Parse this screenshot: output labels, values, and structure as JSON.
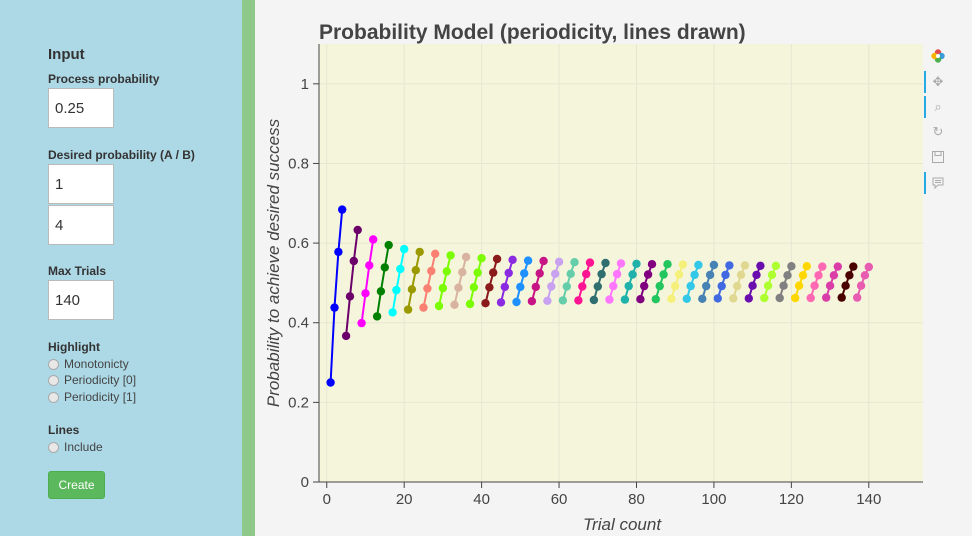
{
  "sidebar": {
    "title": "Input",
    "process_probability": {
      "label": "Process probability",
      "value": "0.25"
    },
    "desired_probability": {
      "label": "Desired probability (A / B)",
      "a": "1",
      "b": "4"
    },
    "max_trials": {
      "label": "Max Trials",
      "value": "140"
    },
    "highlight": {
      "label": "Highlight",
      "options": [
        "Monotonicty",
        "Periodicity [0]",
        "Periodicity [1]"
      ]
    },
    "lines": {
      "label": "Lines",
      "options": [
        "Include"
      ]
    },
    "create_label": "Create"
  },
  "toolbar": {
    "icons": [
      "bokeh-logo-icon",
      "pan-icon",
      "box-zoom-icon",
      "reset-icon",
      "save-icon",
      "hover-icon"
    ]
  },
  "chart_data": {
    "type": "line",
    "title": "Probability Model (periodicity, lines drawn)",
    "xlabel": "Trial count",
    "ylabel": "Probability to achieve desired success",
    "xlim": [
      -2,
      154
    ],
    "ylim": [
      0,
      1.1
    ],
    "xticks": [
      0,
      20,
      40,
      60,
      80,
      100,
      120,
      140
    ],
    "yticks": [
      0,
      0.2,
      0.4,
      0.6,
      0.8,
      1
    ],
    "xtick_labels": [
      "0",
      "20",
      "40",
      "60",
      "80",
      "100",
      "120",
      "140"
    ],
    "ytick_labels": [
      "0",
      "0.2",
      "0.4",
      "0.6",
      "0.8",
      "1"
    ],
    "background": "#f5f5dc",
    "grid": true,
    "legend": "none",
    "series": [
      {
        "color": "#0000ff",
        "points": [
          [
            1,
            0.25
          ],
          [
            2,
            0.438
          ],
          [
            3,
            0.578
          ],
          [
            4,
            0.684
          ]
        ]
      },
      {
        "color": "#6b006b",
        "points": [
          [
            5,
            0.367
          ],
          [
            6,
            0.466
          ],
          [
            7,
            0.555
          ],
          [
            8,
            0.633
          ]
        ]
      },
      {
        "color": "#ff00ff",
        "points": [
          [
            9,
            0.399
          ],
          [
            10,
            0.474
          ],
          [
            11,
            0.544
          ],
          [
            12,
            0.609
          ]
        ]
      },
      {
        "color": "#008000",
        "points": [
          [
            13,
            0.416
          ],
          [
            14,
            0.479
          ],
          [
            15,
            0.539
          ],
          [
            16,
            0.595
          ]
        ]
      },
      {
        "color": "#00ffff",
        "points": [
          [
            17,
            0.426
          ],
          [
            18,
            0.482
          ],
          [
            19,
            0.535
          ],
          [
            20,
            0.585
          ]
        ]
      },
      {
        "color": "#9a9a00",
        "points": [
          [
            21,
            0.433
          ],
          [
            22,
            0.484
          ],
          [
            23,
            0.532
          ],
          [
            24,
            0.578
          ]
        ]
      },
      {
        "color": "#fa8072",
        "points": [
          [
            25,
            0.438
          ],
          [
            26,
            0.486
          ],
          [
            27,
            0.53
          ],
          [
            28,
            0.573
          ]
        ]
      },
      {
        "color": "#7cfc00",
        "points": [
          [
            29,
            0.442
          ],
          [
            30,
            0.487
          ],
          [
            31,
            0.529
          ],
          [
            32,
            0.569
          ]
        ]
      },
      {
        "color": "#d8b4a0",
        "points": [
          [
            33,
            0.445
          ],
          [
            34,
            0.488
          ],
          [
            35,
            0.527
          ],
          [
            36,
            0.565
          ]
        ]
      },
      {
        "color": "#7cfc00",
        "points": [
          [
            37,
            0.447
          ],
          [
            38,
            0.489
          ],
          [
            39,
            0.526
          ],
          [
            40,
            0.562
          ]
        ]
      },
      {
        "color": "#8b1a1a",
        "points": [
          [
            41,
            0.449
          ],
          [
            42,
            0.489
          ],
          [
            43,
            0.526
          ],
          [
            44,
            0.56
          ]
        ]
      },
      {
        "color": "#8a2be2",
        "points": [
          [
            45,
            0.451
          ],
          [
            46,
            0.49
          ],
          [
            47,
            0.525
          ],
          [
            48,
            0.558
          ]
        ]
      },
      {
        "color": "#1e90ff",
        "points": [
          [
            49,
            0.452
          ],
          [
            50,
            0.49
          ],
          [
            51,
            0.524
          ],
          [
            52,
            0.556
          ]
        ]
      },
      {
        "color": "#c71585",
        "points": [
          [
            53,
            0.454
          ],
          [
            54,
            0.49
          ],
          [
            55,
            0.524
          ],
          [
            56,
            0.555
          ]
        ]
      },
      {
        "color": "#c8a2f0",
        "points": [
          [
            57,
            0.455
          ],
          [
            58,
            0.491
          ],
          [
            59,
            0.523
          ],
          [
            60,
            0.553
          ]
        ]
      },
      {
        "color": "#66cdaa",
        "points": [
          [
            61,
            0.456
          ],
          [
            62,
            0.491
          ],
          [
            63,
            0.523
          ],
          [
            64,
            0.552
          ]
        ]
      },
      {
        "color": "#ff1493",
        "points": [
          [
            65,
            0.456
          ],
          [
            66,
            0.491
          ],
          [
            67,
            0.522
          ],
          [
            68,
            0.551
          ]
        ]
      },
      {
        "color": "#2f6f6f",
        "points": [
          [
            69,
            0.457
          ],
          [
            70,
            0.491
          ],
          [
            71,
            0.522
          ],
          [
            72,
            0.55
          ]
        ]
      },
      {
        "color": "#ff77ff",
        "points": [
          [
            73,
            0.458
          ],
          [
            74,
            0.492
          ],
          [
            75,
            0.522
          ],
          [
            76,
            0.549
          ]
        ]
      },
      {
        "color": "#20b2aa",
        "points": [
          [
            77,
            0.458
          ],
          [
            78,
            0.492
          ],
          [
            79,
            0.521
          ],
          [
            80,
            0.548
          ]
        ]
      },
      {
        "color": "#800080",
        "points": [
          [
            81,
            0.459
          ],
          [
            82,
            0.492
          ],
          [
            83,
            0.521
          ],
          [
            84,
            0.547
          ]
        ]
      },
      {
        "color": "#22c55e",
        "points": [
          [
            85,
            0.459
          ],
          [
            86,
            0.492
          ],
          [
            87,
            0.521
          ],
          [
            88,
            0.547
          ]
        ]
      },
      {
        "color": "#f5f07a",
        "points": [
          [
            89,
            0.46
          ],
          [
            90,
            0.492
          ],
          [
            91,
            0.521
          ],
          [
            92,
            0.546
          ]
        ]
      },
      {
        "color": "#33c8e8",
        "points": [
          [
            93,
            0.46
          ],
          [
            94,
            0.492
          ],
          [
            95,
            0.52
          ],
          [
            96,
            0.545
          ]
        ]
      },
      {
        "color": "#4682b4",
        "points": [
          [
            97,
            0.46
          ],
          [
            98,
            0.492
          ],
          [
            99,
            0.52
          ],
          [
            100,
            0.545
          ]
        ]
      },
      {
        "color": "#4169e1",
        "points": [
          [
            101,
            0.461
          ],
          [
            102,
            0.492
          ],
          [
            103,
            0.52
          ],
          [
            104,
            0.544
          ]
        ]
      },
      {
        "color": "#e0d890",
        "points": [
          [
            105,
            0.461
          ],
          [
            106,
            0.492
          ],
          [
            107,
            0.52
          ],
          [
            108,
            0.544
          ]
        ]
      },
      {
        "color": "#6a0dad",
        "points": [
          [
            109,
            0.461
          ],
          [
            110,
            0.493
          ],
          [
            111,
            0.52
          ],
          [
            112,
            0.543
          ]
        ]
      },
      {
        "color": "#adff2f",
        "points": [
          [
            113,
            0.462
          ],
          [
            114,
            0.493
          ],
          [
            115,
            0.52
          ],
          [
            116,
            0.543
          ]
        ]
      },
      {
        "color": "#808080",
        "points": [
          [
            117,
            0.462
          ],
          [
            118,
            0.493
          ],
          [
            119,
            0.519
          ],
          [
            120,
            0.542
          ]
        ]
      },
      {
        "color": "#ffd700",
        "points": [
          [
            121,
            0.462
          ],
          [
            122,
            0.493
          ],
          [
            123,
            0.519
          ],
          [
            124,
            0.542
          ]
        ]
      },
      {
        "color": "#ff69b4",
        "points": [
          [
            125,
            0.462
          ],
          [
            126,
            0.493
          ],
          [
            127,
            0.519
          ],
          [
            128,
            0.541
          ]
        ]
      },
      {
        "color": "#da3ca8",
        "points": [
          [
            129,
            0.463
          ],
          [
            130,
            0.493
          ],
          [
            131,
            0.519
          ],
          [
            132,
            0.541
          ]
        ]
      },
      {
        "color": "#4b0000",
        "points": [
          [
            133,
            0.463
          ],
          [
            134,
            0.493
          ],
          [
            135,
            0.519
          ],
          [
            136,
            0.541
          ]
        ]
      },
      {
        "color": "#e75bb0",
        "points": [
          [
            137,
            0.463
          ],
          [
            138,
            0.493
          ],
          [
            139,
            0.519
          ],
          [
            140,
            0.54
          ]
        ]
      }
    ]
  }
}
